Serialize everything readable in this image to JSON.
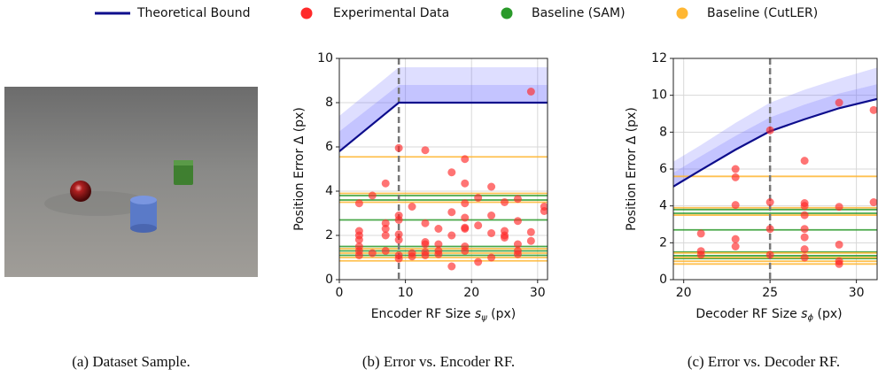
{
  "captions": [
    "(a) Dataset Sample.",
    "(b) Error vs. Encoder RF.",
    "(c) Error vs. Decoder RF."
  ],
  "chart_data": [
    {
      "type": "scatter",
      "xlabel": {
        "text": "Encoder RF Size",
        "symbol": "s",
        "subscript": "ψ",
        "unit": "(px)"
      },
      "ylabel": "Position Error Δ (px)",
      "xlim": [
        0,
        31.5
      ],
      "ylim": [
        0,
        10
      ],
      "xticks": [
        0,
        10,
        20,
        30
      ],
      "yticks": [
        0,
        2,
        4,
        6,
        8,
        10
      ],
      "grid": true,
      "vline": 9,
      "band": {
        "x": [
          0,
          9,
          31.5
        ],
        "inner": [
          6.7,
          8.8,
          8.8
        ],
        "outer": [
          7.4,
          9.6,
          9.6
        ],
        "color": "#6b6bff"
      },
      "series": [
        {
          "name": "Theoretical Bound",
          "kind": "line",
          "color": "#0d0d8c",
          "x": [
            0,
            9,
            31.5
          ],
          "values": [
            5.8,
            8,
            8
          ]
        },
        {
          "name": "Experimental Data",
          "kind": "scatter",
          "color": "#ff2a2a",
          "x": [
            3,
            3,
            3,
            3,
            3,
            3,
            3,
            5,
            5,
            7,
            7,
            7,
            7,
            7,
            9,
            9,
            9,
            9,
            9,
            9,
            9,
            11,
            11,
            11,
            13,
            13,
            13,
            13,
            13,
            13,
            15,
            15,
            15,
            15,
            17,
            17,
            17,
            17,
            19,
            19,
            19,
            19,
            19,
            19,
            19,
            19,
            21,
            21,
            21,
            23,
            23,
            23,
            23,
            25,
            25,
            25,
            25,
            27,
            27,
            27,
            27,
            27,
            29,
            29,
            29,
            31,
            31
          ],
          "values": [
            1.1,
            1.3,
            1.5,
            1.8,
            2.0,
            2.2,
            3.45,
            3.8,
            1.2,
            4.35,
            2.55,
            2.3,
            2.0,
            1.3,
            5.95,
            2.9,
            2.7,
            2.05,
            1.8,
            1.1,
            0.95,
            3.3,
            1.2,
            1.05,
            5.85,
            2.55,
            1.7,
            1.6,
            1.25,
            1.1,
            2.3,
            1.6,
            1.3,
            1.15,
            4.85,
            3.05,
            2.0,
            0.6,
            5.45,
            4.35,
            3.45,
            2.8,
            2.35,
            2.3,
            1.5,
            1.3,
            3.7,
            2.45,
            0.8,
            4.2,
            2.9,
            2.1,
            1.0,
            3.5,
            2.2,
            2.0,
            1.9,
            3.65,
            2.65,
            1.6,
            1.3,
            1.15,
            8.5,
            2.15,
            1.75,
            3.3,
            3.1
          ]
        },
        {
          "name": "Baseline (SAM)",
          "kind": "hline",
          "color": "#2a9a2a",
          "values": [
            3.8,
            3.6,
            2.7,
            1.5,
            1.3,
            1.1
          ]
        },
        {
          "name": "Baseline (CutLER)",
          "kind": "hline",
          "color": "#ffb733",
          "values": [
            5.55,
            3.9,
            3.5,
            1.4,
            1.2,
            1.0,
            0.85
          ]
        }
      ]
    },
    {
      "type": "scatter",
      "xlabel": {
        "text": "Decoder RF Size",
        "symbol": "s",
        "subscript": "ϕ",
        "unit": "(px)"
      },
      "ylabel": "Position Error Δ (px)",
      "xlim": [
        19.4,
        31.2
      ],
      "ylim": [
        0,
        12
      ],
      "xticks": [
        20,
        25,
        30
      ],
      "yticks": [
        0,
        2,
        4,
        6,
        8,
        10,
        12
      ],
      "grid": true,
      "vline": 25,
      "band": {
        "x": [
          19.4,
          21,
          23,
          25,
          27,
          29,
          31.2
        ],
        "inner": [
          5.8,
          6.7,
          7.8,
          8.8,
          9.5,
          10.1,
          10.6
        ],
        "outer": [
          6.4,
          7.3,
          8.5,
          9.6,
          10.3,
          10.9,
          11.5
        ],
        "color": "#6b6bff"
      },
      "series": [
        {
          "name": "Theoretical Bound",
          "kind": "line",
          "color": "#0d0d8c",
          "x": [
            19.4,
            21,
            23,
            25,
            27,
            29,
            31.2
          ],
          "values": [
            5.05,
            5.95,
            7.05,
            8.05,
            8.7,
            9.3,
            9.8
          ]
        },
        {
          "name": "Experimental Data",
          "kind": "scatter",
          "color": "#ff2a2a",
          "x": [
            21,
            21,
            21,
            23,
            23,
            23,
            23,
            23,
            25,
            25,
            25,
            25,
            27,
            27,
            27,
            27,
            27,
            27,
            27,
            27,
            29,
            29,
            29,
            29,
            29,
            31,
            31
          ],
          "values": [
            2.5,
            1.55,
            1.35,
            6.0,
            5.55,
            4.05,
            2.2,
            1.8,
            8.1,
            4.2,
            2.75,
            1.35,
            6.45,
            4.15,
            4.0,
            3.5,
            2.75,
            2.3,
            1.65,
            1.2,
            9.6,
            3.95,
            1.9,
            1.0,
            0.85,
            9.2,
            4.2
          ]
        },
        {
          "name": "Baseline (SAM)",
          "kind": "hline",
          "color": "#2a9a2a",
          "values": [
            3.8,
            3.6,
            2.7,
            1.5,
            1.3,
            1.15
          ]
        },
        {
          "name": "Baseline (CutLER)",
          "kind": "hline",
          "color": "#ffb733",
          "values": [
            5.6,
            3.9,
            3.5,
            1.45,
            1.2,
            1.0,
            0.85
          ]
        }
      ]
    }
  ]
}
